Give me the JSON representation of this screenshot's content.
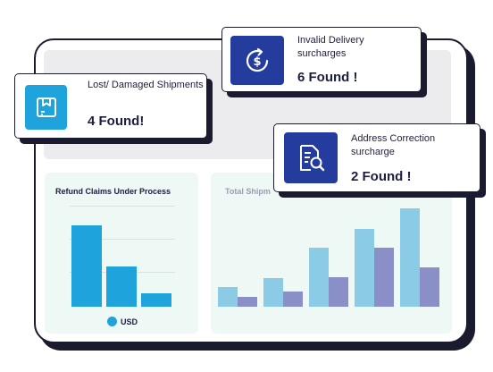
{
  "cards": {
    "lost": {
      "label": "Lost/ Damaged Shipments",
      "count": "4 Found!",
      "icon": "package-icon"
    },
    "invalid": {
      "label": "Invalid Delivery surcharges",
      "count": "6 Found !",
      "icon": "dollar-refresh-icon"
    },
    "address": {
      "label": "Address Correction surcharge",
      "count": "2 Found !",
      "icon": "document-search-icon"
    }
  },
  "panels": {
    "refund": {
      "title": "Refund Claims Under Process",
      "legend": "USD"
    },
    "total": {
      "title": "Total Shipm"
    }
  },
  "colors": {
    "accent_light": "#1fa3dd",
    "accent_dark": "#243c9e",
    "bar_light": "#8ccbe6",
    "bar_purple": "#8b8fc7",
    "ink": "#1e1e3f"
  },
  "chart_data": [
    {
      "type": "bar",
      "title": "Refund Claims Under Process",
      "categories": [
        "",
        "",
        ""
      ],
      "series": [
        {
          "name": "USD",
          "values": [
            90,
            45,
            15
          ]
        }
      ],
      "ylim": [
        0,
        110
      ],
      "grid": true,
      "legend": "bottom"
    },
    {
      "type": "bar",
      "title": "Total Shipm",
      "categories": [
        "",
        "",
        "",
        "",
        ""
      ],
      "series": [
        {
          "values": [
            22,
            33,
            67,
            89,
            112
          ]
        },
        {
          "values": [
            11,
            17,
            34,
            67,
            45
          ]
        }
      ],
      "ylim": [
        0,
        115
      ],
      "grid": false
    }
  ]
}
